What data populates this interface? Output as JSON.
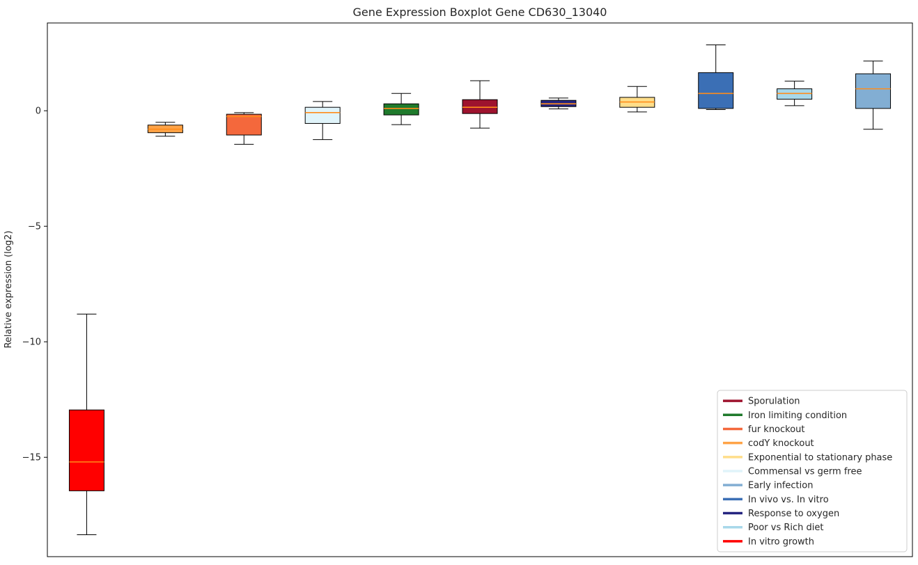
{
  "chart_data": {
    "type": "boxplot",
    "title": "Gene Expression Boxplot Gene CD630_13040",
    "ylabel": "Relative expression (log2)",
    "xlabel": "",
    "ylim": [
      -19.3,
      3.8
    ],
    "yticks": [
      0,
      -5,
      -10,
      -15
    ],
    "grid": false,
    "legend_position": "lower right",
    "median_color": "#FF8C1A",
    "box_edge_color": "#000000",
    "series": [
      {
        "name": "In vitro growth",
        "color": "#FF0000",
        "whisker_low": -18.35,
        "q1": -16.45,
        "median": -15.2,
        "q3": -12.95,
        "whisker_high": -8.8
      },
      {
        "name": "codY knockout",
        "color": "#FFA347",
        "whisker_low": -1.1,
        "q1": -0.95,
        "median": -0.8,
        "q3": -0.62,
        "whisker_high": -0.5
      },
      {
        "name": "fur knockout",
        "color": "#F4683C",
        "whisker_low": -1.45,
        "q1": -1.05,
        "median": -0.25,
        "q3": -0.15,
        "whisker_high": -0.08
      },
      {
        "name": "Commensal vs germ free",
        "color": "#E0F4FA",
        "whisker_low": -1.25,
        "q1": -0.55,
        "median": -0.08,
        "q3": 0.15,
        "whisker_high": 0.4
      },
      {
        "name": "Iron limiting condition",
        "color": "#1F7A2C",
        "whisker_low": -0.6,
        "q1": -0.18,
        "median": 0.1,
        "q3": 0.3,
        "whisker_high": 0.75
      },
      {
        "name": "Sporulation",
        "color": "#9E132E",
        "whisker_low": -0.75,
        "q1": -0.12,
        "median": 0.15,
        "q3": 0.48,
        "whisker_high": 1.3
      },
      {
        "name": "Response to oxygen",
        "color": "#252480",
        "whisker_low": 0.08,
        "q1": 0.18,
        "median": 0.3,
        "q3": 0.45,
        "whisker_high": 0.55
      },
      {
        "name": "Exponential to stationary phase",
        "color": "#FFDE8A",
        "whisker_low": -0.05,
        "q1": 0.15,
        "median": 0.38,
        "q3": 0.58,
        "whisker_high": 1.05
      },
      {
        "name": "In vivo vs. In vitro",
        "color": "#3B6FB5",
        "whisker_low": 0.05,
        "q1": 0.1,
        "median": 0.75,
        "q3": 1.65,
        "whisker_high": 2.85
      },
      {
        "name": "Poor vs Rich diet",
        "color": "#A8D8EA",
        "whisker_low": 0.22,
        "q1": 0.5,
        "median": 0.75,
        "q3": 0.95,
        "whisker_high": 1.28
      },
      {
        "name": "Early infection",
        "color": "#82AED3",
        "whisker_low": -0.8,
        "q1": 0.1,
        "median": 0.95,
        "q3": 1.6,
        "whisker_high": 2.15
      }
    ],
    "legend": [
      {
        "label": "Sporulation",
        "color": "#9E132E"
      },
      {
        "label": "Iron limiting condition",
        "color": "#1F7A2C"
      },
      {
        "label": "fur knockout",
        "color": "#F4683C"
      },
      {
        "label": "codY knockout",
        "color": "#FFA347"
      },
      {
        "label": "Exponential to stationary phase",
        "color": "#FFDE8A"
      },
      {
        "label": "Commensal vs germ free",
        "color": "#E0F4FA"
      },
      {
        "label": "Early infection",
        "color": "#82AED3"
      },
      {
        "label": "In vivo vs. In vitro",
        "color": "#3B6FB5"
      },
      {
        "label": "Response to oxygen",
        "color": "#252480"
      },
      {
        "label": "Poor vs Rich diet",
        "color": "#A8D8EA"
      },
      {
        "label": "In vitro growth",
        "color": "#FF0000"
      }
    ]
  }
}
